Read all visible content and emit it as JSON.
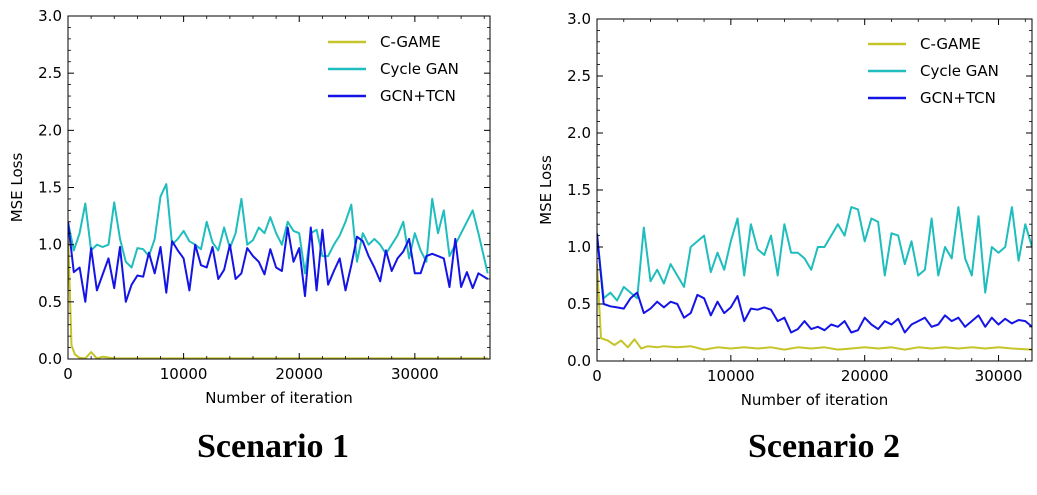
{
  "chart_data": [
    {
      "type": "line",
      "caption": "Scenario 1",
      "xlabel": "Number of iteration",
      "ylabel": "MSE Loss",
      "xlim": [
        0,
        36500
      ],
      "ylim": [
        0,
        3.0
      ],
      "xticks": [
        0,
        10000,
        20000,
        30000
      ],
      "xtick_labels": [
        "0",
        "10000",
        "20000",
        "30000"
      ],
      "yticks": [
        0,
        0.5,
        1.0,
        1.5,
        2.0,
        2.5,
        3.0
      ],
      "ytick_labels": [
        "0.0",
        "0.5",
        "1.0",
        "1.5",
        "2.0",
        "2.5",
        "3.0"
      ],
      "legend_position": "top-right",
      "grid": false,
      "series": [
        {
          "name": "C-GAME",
          "color": "#c5c52a",
          "x": [
            0,
            300,
            600,
            1000,
            1500,
            2000,
            2500,
            3000,
            4000,
            6000,
            10000,
            15000,
            20000,
            25000,
            30000,
            36300
          ],
          "y": [
            1.1,
            0.12,
            0.04,
            0.01,
            0.005,
            0.06,
            0.005,
            0.02,
            0.005,
            0.005,
            0.005,
            0.005,
            0.005,
            0.005,
            0.005,
            0.005
          ]
        },
        {
          "name": "Cycle GAN",
          "color": "#1fbdbd",
          "x": [
            0,
            500,
            1000,
            1500,
            2000,
            2500,
            3000,
            3500,
            4000,
            4500,
            5000,
            5500,
            6000,
            6500,
            7000,
            7500,
            8000,
            8500,
            9000,
            9500,
            10000,
            10500,
            11000,
            11500,
            12000,
            12500,
            13000,
            13500,
            14000,
            14500,
            15000,
            15500,
            16000,
            16500,
            17000,
            17500,
            18000,
            18500,
            19000,
            19500,
            20000,
            20500,
            21000,
            21500,
            22000,
            22500,
            23000,
            23500,
            24000,
            24500,
            25000,
            25500,
            26000,
            26500,
            27000,
            27500,
            28000,
            28500,
            29000,
            29500,
            30000,
            30500,
            31000,
            31500,
            32000,
            32500,
            33000,
            33500,
            34000,
            34500,
            35000,
            35500,
            36300
          ],
          "y": [
            1.2,
            0.95,
            1.1,
            1.36,
            0.95,
            1.0,
            0.98,
            1.0,
            1.37,
            1.05,
            0.85,
            0.8,
            0.97,
            0.96,
            0.9,
            1.05,
            1.42,
            1.53,
            1.0,
            1.05,
            1.12,
            1.03,
            1.0,
            0.96,
            1.2,
            1.02,
            0.95,
            1.15,
            0.97,
            1.1,
            1.4,
            1.0,
            1.04,
            1.15,
            1.1,
            1.24,
            1.1,
            1.0,
            1.2,
            1.12,
            1.1,
            0.75,
            1.1,
            1.13,
            0.9,
            0.9,
            1.0,
            1.08,
            1.2,
            1.35,
            0.85,
            1.1,
            1.0,
            1.05,
            1.0,
            0.92,
            1.0,
            1.08,
            1.2,
            0.88,
            1.1,
            0.95,
            0.85,
            1.4,
            1.1,
            1.3,
            0.9,
            1.0,
            1.1,
            1.2,
            1.3,
            1.1,
            0.75
          ]
        },
        {
          "name": "GCN+TCN",
          "color": "#1414e6",
          "x": [
            0,
            500,
            1000,
            1500,
            2000,
            2500,
            3000,
            3500,
            4000,
            4500,
            5000,
            5500,
            6000,
            6500,
            7000,
            7500,
            8000,
            8500,
            9000,
            9500,
            10000,
            10500,
            11000,
            11500,
            12000,
            12500,
            13000,
            13500,
            14000,
            14500,
            15000,
            15500,
            16000,
            16500,
            17000,
            17500,
            18000,
            18500,
            19000,
            19500,
            20000,
            20500,
            21000,
            21500,
            22000,
            22500,
            23000,
            23500,
            24000,
            24500,
            25000,
            25500,
            26000,
            26500,
            27000,
            27500,
            28000,
            28500,
            29000,
            29500,
            30000,
            30500,
            31000,
            31500,
            32000,
            32500,
            33000,
            33500,
            34000,
            34500,
            35000,
            35500,
            36300
          ],
          "y": [
            1.2,
            0.76,
            0.8,
            0.5,
            0.97,
            0.6,
            0.74,
            0.88,
            0.62,
            0.98,
            0.5,
            0.65,
            0.73,
            0.72,
            0.93,
            0.75,
            0.98,
            0.58,
            1.03,
            0.95,
            0.88,
            0.6,
            1.0,
            0.82,
            0.8,
            0.98,
            0.7,
            0.78,
            1.0,
            0.7,
            0.75,
            0.97,
            0.9,
            0.85,
            0.74,
            0.96,
            0.8,
            0.77,
            1.15,
            0.85,
            0.97,
            0.55,
            1.15,
            0.6,
            1.13,
            0.65,
            0.77,
            0.88,
            0.6,
            0.82,
            1.07,
            1.03,
            0.9,
            0.8,
            0.68,
            0.95,
            0.77,
            0.88,
            0.94,
            1.05,
            0.75,
            0.75,
            0.9,
            0.92,
            0.9,
            0.88,
            0.63,
            1.05,
            0.63,
            0.76,
            0.62,
            0.75,
            0.7
          ]
        }
      ]
    },
    {
      "type": "line",
      "caption": "Scenario 2",
      "xlabel": "Number of iteration",
      "ylabel": "MSE Loss",
      "xlim": [
        0,
        32500
      ],
      "ylim": [
        0,
        3.0
      ],
      "xticks": [
        0,
        10000,
        20000,
        30000
      ],
      "xtick_labels": [
        "0",
        "10000",
        "20000",
        "30000"
      ],
      "yticks": [
        0,
        0.5,
        1.0,
        1.5,
        2.0,
        2.5,
        3.0
      ],
      "ytick_labels": [
        "0.0",
        "0.5",
        "1.0",
        "1.5",
        "2.0",
        "2.5",
        "3.0"
      ],
      "legend_position": "top-right",
      "grid": false,
      "series": [
        {
          "name": "C-GAME",
          "color": "#c5c52a",
          "x": [
            0,
            300,
            800,
            1300,
            1800,
            2300,
            2800,
            3300,
            3800,
            4500,
            5000,
            6000,
            7000,
            8000,
            9000,
            10000,
            11000,
            12000,
            13000,
            14000,
            15000,
            16000,
            17000,
            18000,
            19000,
            20000,
            21000,
            22000,
            23000,
            24000,
            25000,
            26000,
            27000,
            28000,
            29000,
            30000,
            31000,
            32500
          ],
          "y": [
            0.85,
            0.2,
            0.18,
            0.14,
            0.18,
            0.12,
            0.19,
            0.11,
            0.13,
            0.12,
            0.13,
            0.12,
            0.13,
            0.1,
            0.12,
            0.11,
            0.12,
            0.11,
            0.12,
            0.1,
            0.12,
            0.11,
            0.12,
            0.1,
            0.11,
            0.12,
            0.11,
            0.12,
            0.1,
            0.12,
            0.11,
            0.12,
            0.11,
            0.12,
            0.11,
            0.12,
            0.11,
            0.1
          ]
        },
        {
          "name": "Cycle GAN",
          "color": "#1fbdbd",
          "x": [
            0,
            500,
            1000,
            1500,
            2000,
            2500,
            3000,
            3500,
            4000,
            4500,
            5000,
            5500,
            6000,
            6500,
            7000,
            7500,
            8000,
            8500,
            9000,
            9500,
            10000,
            10500,
            11000,
            11500,
            12000,
            12500,
            13000,
            13500,
            14000,
            14500,
            15000,
            15500,
            16000,
            16500,
            17000,
            17500,
            18000,
            18500,
            19000,
            19500,
            20000,
            20500,
            21000,
            21500,
            22000,
            22500,
            23000,
            23500,
            24000,
            24500,
            25000,
            25500,
            26000,
            26500,
            27000,
            27500,
            28000,
            28500,
            29000,
            29500,
            30000,
            30500,
            31000,
            31500,
            32000,
            32500
          ],
          "y": [
            1.1,
            0.55,
            0.6,
            0.53,
            0.65,
            0.6,
            0.55,
            1.17,
            0.7,
            0.8,
            0.68,
            0.85,
            0.75,
            0.65,
            1.0,
            1.05,
            1.1,
            0.78,
            0.95,
            0.8,
            1.05,
            1.25,
            0.75,
            1.2,
            0.98,
            0.93,
            1.1,
            0.75,
            1.2,
            0.95,
            0.95,
            0.9,
            0.8,
            1.0,
            1.0,
            1.1,
            1.2,
            1.1,
            1.35,
            1.33,
            1.05,
            1.25,
            1.22,
            0.75,
            1.12,
            1.1,
            0.85,
            1.05,
            0.75,
            0.8,
            1.25,
            0.75,
            1.0,
            0.9,
            1.35,
            0.9,
            0.75,
            1.27,
            0.6,
            1.0,
            0.95,
            1.0,
            1.35,
            0.88,
            1.2,
            1.0
          ]
        },
        {
          "name": "GCN+TCN",
          "color": "#1414e6",
          "x": [
            0,
            500,
            1000,
            1500,
            2000,
            2500,
            3000,
            3500,
            4000,
            4500,
            5000,
            5500,
            6000,
            6500,
            7000,
            7500,
            8000,
            8500,
            9000,
            9500,
            10000,
            10500,
            11000,
            11500,
            12000,
            12500,
            13000,
            13500,
            14000,
            14500,
            15000,
            15500,
            16000,
            16500,
            17000,
            17500,
            18000,
            18500,
            19000,
            19500,
            20000,
            20500,
            21000,
            21500,
            22000,
            22500,
            23000,
            23500,
            24000,
            24500,
            25000,
            25500,
            26000,
            26500,
            27000,
            27500,
            28000,
            28500,
            29000,
            29500,
            30000,
            30500,
            31000,
            31500,
            32000,
            32500
          ],
          "y": [
            1.12,
            0.5,
            0.48,
            0.47,
            0.46,
            0.55,
            0.6,
            0.42,
            0.46,
            0.52,
            0.47,
            0.52,
            0.5,
            0.38,
            0.42,
            0.58,
            0.55,
            0.4,
            0.52,
            0.42,
            0.47,
            0.57,
            0.35,
            0.46,
            0.45,
            0.47,
            0.45,
            0.35,
            0.38,
            0.25,
            0.28,
            0.35,
            0.28,
            0.3,
            0.27,
            0.32,
            0.3,
            0.35,
            0.25,
            0.27,
            0.38,
            0.32,
            0.28,
            0.35,
            0.32,
            0.37,
            0.25,
            0.32,
            0.35,
            0.38,
            0.3,
            0.32,
            0.4,
            0.35,
            0.38,
            0.3,
            0.35,
            0.4,
            0.3,
            0.38,
            0.32,
            0.37,
            0.33,
            0.36,
            0.35,
            0.3
          ]
        }
      ]
    }
  ]
}
